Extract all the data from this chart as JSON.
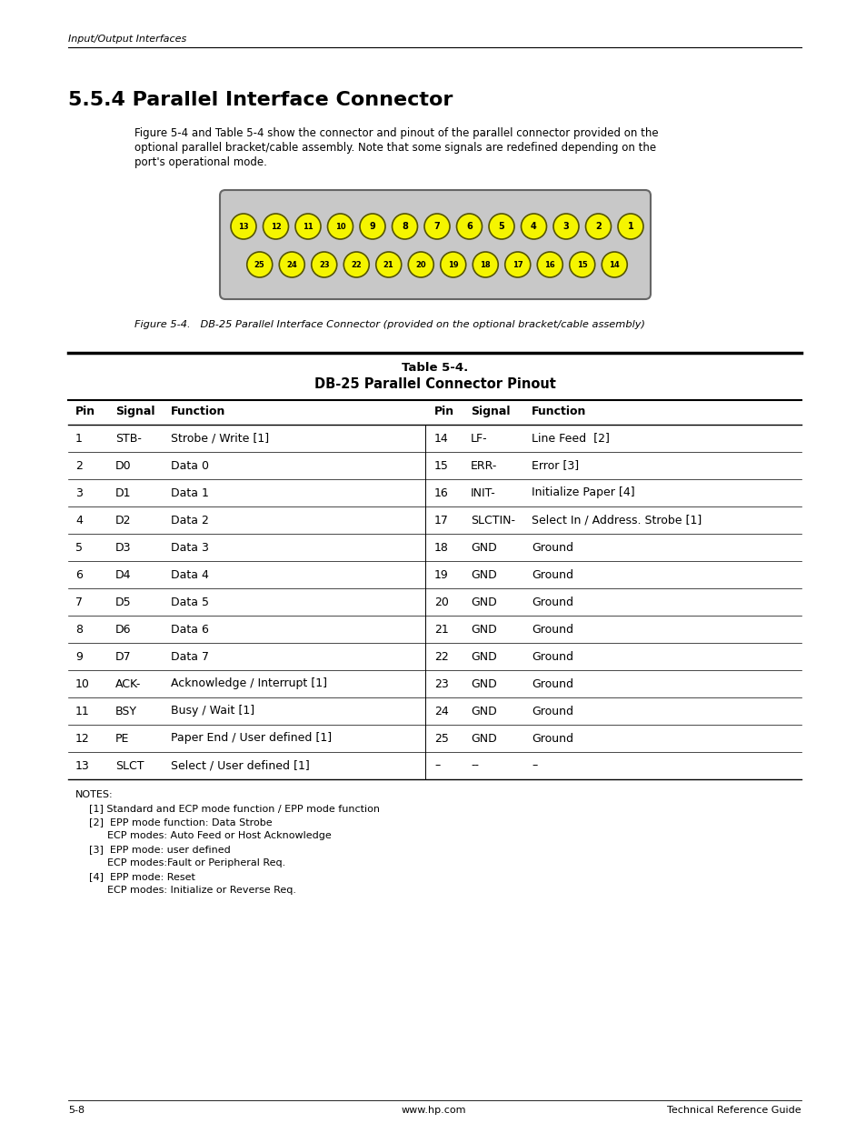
{
  "page_header": "Input/Output Interfaces",
  "section_title": "5.5.4 Parallel Interface Connector",
  "intro_text_lines": [
    "Figure 5-4 and Table 5-4 show the connector and pinout of the parallel connector provided on the",
    "optional parallel bracket/cable assembly. Note that some signals are redefined depending on the",
    "port's operational mode."
  ],
  "figure_caption": "Figure 5-4.   DB-25 Parallel Interface Connector (provided on the optional bracket/cable assembly)",
  "table_title1": "Table 5-4.",
  "table_title2": "DB-25 Parallel Connector Pinout",
  "connector_row1": [
    13,
    12,
    11,
    10,
    9,
    8,
    7,
    6,
    5,
    4,
    3,
    2,
    1
  ],
  "connector_row2": [
    25,
    24,
    23,
    22,
    21,
    20,
    19,
    18,
    17,
    16,
    15,
    14
  ],
  "col_headers": [
    "Pin",
    "Signal",
    "Function",
    "Pin",
    "Signal",
    "Function"
  ],
  "table_rows": [
    [
      "1",
      "STB-",
      "Strobe / Write [1]",
      "14",
      "LF-",
      "Line Feed  [2]"
    ],
    [
      "2",
      "D0",
      "Data 0",
      "15",
      "ERR-",
      "Error [3]"
    ],
    [
      "3",
      "D1",
      "Data 1",
      "16",
      "INIT-",
      "Initialize Paper [4]"
    ],
    [
      "4",
      "D2",
      "Data 2",
      "17",
      "SLCTIN-",
      "Select In / Address. Strobe [1]"
    ],
    [
      "5",
      "D3",
      "Data 3",
      "18",
      "GND",
      "Ground"
    ],
    [
      "6",
      "D4",
      "Data 4",
      "19",
      "GND",
      "Ground"
    ],
    [
      "7",
      "D5",
      "Data 5",
      "20",
      "GND",
      "Ground"
    ],
    [
      "8",
      "D6",
      "Data 6",
      "21",
      "GND",
      "Ground"
    ],
    [
      "9",
      "D7",
      "Data 7",
      "22",
      "GND",
      "Ground"
    ],
    [
      "10",
      "ACK-",
      "Acknowledge / Interrupt [1]",
      "23",
      "GND",
      "Ground"
    ],
    [
      "11",
      "BSY",
      "Busy / Wait [1]",
      "24",
      "GND",
      "Ground"
    ],
    [
      "12",
      "PE",
      "Paper End / User defined [1]",
      "25",
      "GND",
      "Ground"
    ],
    [
      "13",
      "SLCT",
      "Select / User defined [1]",
      "–",
      "--",
      "–"
    ]
  ],
  "notes_lines": [
    [
      "NOTES:",
      false,
      0
    ],
    [
      "[1] Standard and ECP mode function / EPP mode function",
      false,
      15
    ],
    [
      "[2]  EPP mode function: Data Strobe",
      false,
      15
    ],
    [
      "ECP modes: Auto Feed or Host Acknowledge",
      false,
      35
    ],
    [
      "[3]  EPP mode: user defined",
      false,
      15
    ],
    [
      "ECP modes:Fault or Peripheral Req.",
      false,
      35
    ],
    [
      "[4]  EPP mode: Reset",
      false,
      15
    ],
    [
      "ECP modes: Initialize or Reverse Req.",
      false,
      35
    ]
  ],
  "footer_left": "5-8",
  "footer_center": "www.hp.com",
  "footer_right": "Technical Reference Guide",
  "bg_color": "#ffffff",
  "connector_body_color": "#c8c8c8",
  "pin_fill_color": "#f5f500",
  "pin_outline_color": "#555500",
  "pin_text_color": "#000000"
}
